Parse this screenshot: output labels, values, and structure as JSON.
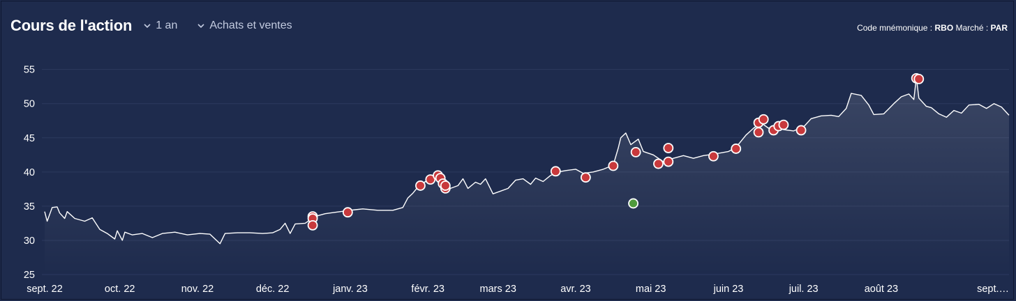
{
  "header": {
    "title": "Cours de l'action",
    "period_label": "1 an",
    "mode_label": "Achats et ventes",
    "ticker_label": "Code mnémonique :",
    "ticker": "RBO",
    "market_label": "Marché :",
    "market": "PAR"
  },
  "colors": {
    "background": "#1e2b4d",
    "line": "#ffffff",
    "sell_marker": "#c8393c",
    "buy_marker": "#4f9a3c",
    "grid": "#2c3a5e"
  },
  "icons": {
    "dropdown": "chevron-down-icon"
  },
  "chart_data": {
    "type": "line",
    "title": "Cours de l'action",
    "xlabel": "",
    "ylabel": "",
    "ylim": [
      25,
      57
    ],
    "yticks": [
      25,
      30,
      35,
      40,
      45,
      50,
      55
    ],
    "x_tick_labels": [
      "sept. 22",
      "oct. 22",
      "nov. 22",
      "déc. 22",
      "janv. 23",
      "févr. 23",
      "mars 23",
      "avr. 23",
      "mai 23",
      "juin 23",
      "juil. 23",
      "août 23",
      "sept.…"
    ],
    "x_tick_dates": [
      "2022-09-01",
      "2022-10-01",
      "2022-11-01",
      "2022-12-01",
      "2023-01-01",
      "2023-02-01",
      "2023-03-01",
      "2023-04-01",
      "2023-05-01",
      "2023-06-01",
      "2023-07-01",
      "2023-08-01",
      "2023-09-01"
    ],
    "grid": true,
    "legend": "none",
    "series": [
      {
        "values": [
          [
            "2022-09-01",
            34.2
          ],
          [
            "2022-09-02",
            32.8
          ],
          [
            "2022-09-04",
            34.8
          ],
          [
            "2022-09-06",
            34.9
          ],
          [
            "2022-09-07",
            34.0
          ],
          [
            "2022-09-09",
            33.2
          ],
          [
            "2022-09-10",
            34.2
          ],
          [
            "2022-09-13",
            33.2
          ],
          [
            "2022-09-17",
            32.8
          ],
          [
            "2022-09-20",
            33.3
          ],
          [
            "2022-09-23",
            31.6
          ],
          [
            "2022-09-26",
            31.0
          ],
          [
            "2022-09-29",
            30.2
          ],
          [
            "2022-09-30",
            31.4
          ],
          [
            "2022-10-02",
            30.0
          ],
          [
            "2022-10-03",
            31.2
          ],
          [
            "2022-10-06",
            30.8
          ],
          [
            "2022-10-10",
            31.0
          ],
          [
            "2022-10-14",
            30.4
          ],
          [
            "2022-10-18",
            31.0
          ],
          [
            "2022-10-23",
            31.2
          ],
          [
            "2022-10-28",
            30.8
          ],
          [
            "2022-11-02",
            31.0
          ],
          [
            "2022-11-06",
            30.9
          ],
          [
            "2022-11-10",
            29.5
          ],
          [
            "2022-11-12",
            31.0
          ],
          [
            "2022-11-17",
            31.1
          ],
          [
            "2022-11-22",
            31.1
          ],
          [
            "2022-11-27",
            31.0
          ],
          [
            "2022-12-01",
            31.1
          ],
          [
            "2022-12-04",
            31.6
          ],
          [
            "2022-12-06",
            32.5
          ],
          [
            "2022-12-08",
            31.0
          ],
          [
            "2022-12-10",
            32.4
          ],
          [
            "2022-12-14",
            32.5
          ],
          [
            "2022-12-18",
            33.5
          ],
          [
            "2022-12-22",
            33.9
          ],
          [
            "2022-12-26",
            34.1
          ],
          [
            "2023-01-01",
            34.4
          ],
          [
            "2023-01-06",
            34.6
          ],
          [
            "2023-01-12",
            34.4
          ],
          [
            "2023-01-18",
            34.4
          ],
          [
            "2023-01-22",
            34.8
          ],
          [
            "2023-01-24",
            36.2
          ],
          [
            "2023-01-26",
            36.9
          ],
          [
            "2023-01-28",
            37.8
          ],
          [
            "2023-01-31",
            38.6
          ],
          [
            "2023-02-02",
            38.3
          ],
          [
            "2023-02-04",
            39.2
          ],
          [
            "2023-02-06",
            39.5
          ],
          [
            "2023-02-08",
            38.0
          ],
          [
            "2023-02-10",
            37.6
          ],
          [
            "2023-02-13",
            38.0
          ],
          [
            "2023-02-15",
            39.0
          ],
          [
            "2023-02-17",
            37.6
          ],
          [
            "2023-02-20",
            38.5
          ],
          [
            "2023-02-22",
            38.2
          ],
          [
            "2023-02-24",
            39.0
          ],
          [
            "2023-02-27",
            36.8
          ],
          [
            "2023-03-02",
            37.2
          ],
          [
            "2023-03-05",
            37.6
          ],
          [
            "2023-03-08",
            38.8
          ],
          [
            "2023-03-11",
            39.0
          ],
          [
            "2023-03-14",
            38.2
          ],
          [
            "2023-03-16",
            39.1
          ],
          [
            "2023-03-19",
            38.6
          ],
          [
            "2023-03-22",
            39.5
          ],
          [
            "2023-03-25",
            40.0
          ],
          [
            "2023-03-28",
            40.2
          ],
          [
            "2023-04-01",
            40.4
          ],
          [
            "2023-04-04",
            39.8
          ],
          [
            "2023-04-08",
            40.0
          ],
          [
            "2023-04-12",
            40.4
          ],
          [
            "2023-04-16",
            41.0
          ],
          [
            "2023-04-18",
            43.5
          ],
          [
            "2023-04-19",
            45.0
          ],
          [
            "2023-04-21",
            45.7
          ],
          [
            "2023-04-23",
            44.0
          ],
          [
            "2023-04-26",
            44.8
          ],
          [
            "2023-04-28",
            43.0
          ],
          [
            "2023-05-02",
            42.5
          ],
          [
            "2023-05-06",
            41.5
          ],
          [
            "2023-05-10",
            42.0
          ],
          [
            "2023-05-14",
            42.4
          ],
          [
            "2023-05-18",
            42.0
          ],
          [
            "2023-05-22",
            42.4
          ],
          [
            "2023-05-26",
            42.6
          ],
          [
            "2023-06-01",
            43.0
          ],
          [
            "2023-06-04",
            43.6
          ],
          [
            "2023-06-06",
            44.5
          ],
          [
            "2023-06-08",
            45.4
          ],
          [
            "2023-06-11",
            46.4
          ],
          [
            "2023-06-14",
            47.2
          ],
          [
            "2023-06-17",
            46.4
          ],
          [
            "2023-06-20",
            46.8
          ],
          [
            "2023-06-23",
            46.2
          ],
          [
            "2023-06-27",
            46.0
          ],
          [
            "2023-07-01",
            46.6
          ],
          [
            "2023-07-04",
            47.8
          ],
          [
            "2023-07-08",
            48.2
          ],
          [
            "2023-07-12",
            48.3
          ],
          [
            "2023-07-15",
            48.1
          ],
          [
            "2023-07-18",
            49.3
          ],
          [
            "2023-07-20",
            51.5
          ],
          [
            "2023-07-24",
            51.2
          ],
          [
            "2023-07-27",
            49.8
          ],
          [
            "2023-07-29",
            48.4
          ],
          [
            "2023-08-02",
            48.5
          ],
          [
            "2023-08-06",
            50.0
          ],
          [
            "2023-08-09",
            51.0
          ],
          [
            "2023-08-12",
            51.4
          ],
          [
            "2023-08-14",
            50.6
          ],
          [
            "2023-08-15",
            53.8
          ],
          [
            "2023-08-16",
            50.8
          ],
          [
            "2023-08-19",
            49.6
          ],
          [
            "2023-08-21",
            49.4
          ],
          [
            "2023-08-24",
            48.5
          ],
          [
            "2023-08-27",
            48.0
          ],
          [
            "2023-08-30",
            49.0
          ],
          [
            "2023-09-02",
            48.6
          ],
          [
            "2023-09-05",
            49.8
          ],
          [
            "2023-09-09",
            49.9
          ],
          [
            "2023-09-12",
            49.3
          ],
          [
            "2023-09-15",
            50.0
          ],
          [
            "2023-09-18",
            49.5
          ],
          [
            "2023-09-21",
            48.3
          ]
        ]
      }
    ],
    "transactions": {
      "sells": [
        [
          "2022-12-17",
          33.5
        ],
        [
          "2022-12-17",
          33.2
        ],
        [
          "2022-12-17",
          32.2
        ],
        [
          "2022-12-31",
          34.1
        ],
        [
          "2023-01-29",
          38.0
        ],
        [
          "2023-02-02",
          38.9
        ],
        [
          "2023-02-05",
          39.5
        ],
        [
          "2023-02-06",
          39.1
        ],
        [
          "2023-02-07",
          38.3
        ],
        [
          "2023-02-08",
          37.6
        ],
        [
          "2023-02-08",
          38.0
        ],
        [
          "2023-03-24",
          40.1
        ],
        [
          "2023-04-05",
          39.2
        ],
        [
          "2023-04-16",
          40.9
        ],
        [
          "2023-04-25",
          42.9
        ],
        [
          "2023-05-04",
          41.2
        ],
        [
          "2023-05-08",
          43.5
        ],
        [
          "2023-05-08",
          41.5
        ],
        [
          "2023-05-26",
          42.3
        ],
        [
          "2023-06-04",
          43.4
        ],
        [
          "2023-06-13",
          47.2
        ],
        [
          "2023-06-13",
          45.8
        ],
        [
          "2023-06-15",
          47.7
        ],
        [
          "2023-06-19",
          46.1
        ],
        [
          "2023-06-21",
          46.7
        ],
        [
          "2023-06-23",
          46.9
        ],
        [
          "2023-06-30",
          46.1
        ],
        [
          "2023-08-15",
          53.7
        ],
        [
          "2023-08-16",
          53.6
        ]
      ],
      "buys": [
        [
          "2023-04-24",
          35.4
        ]
      ]
    }
  }
}
